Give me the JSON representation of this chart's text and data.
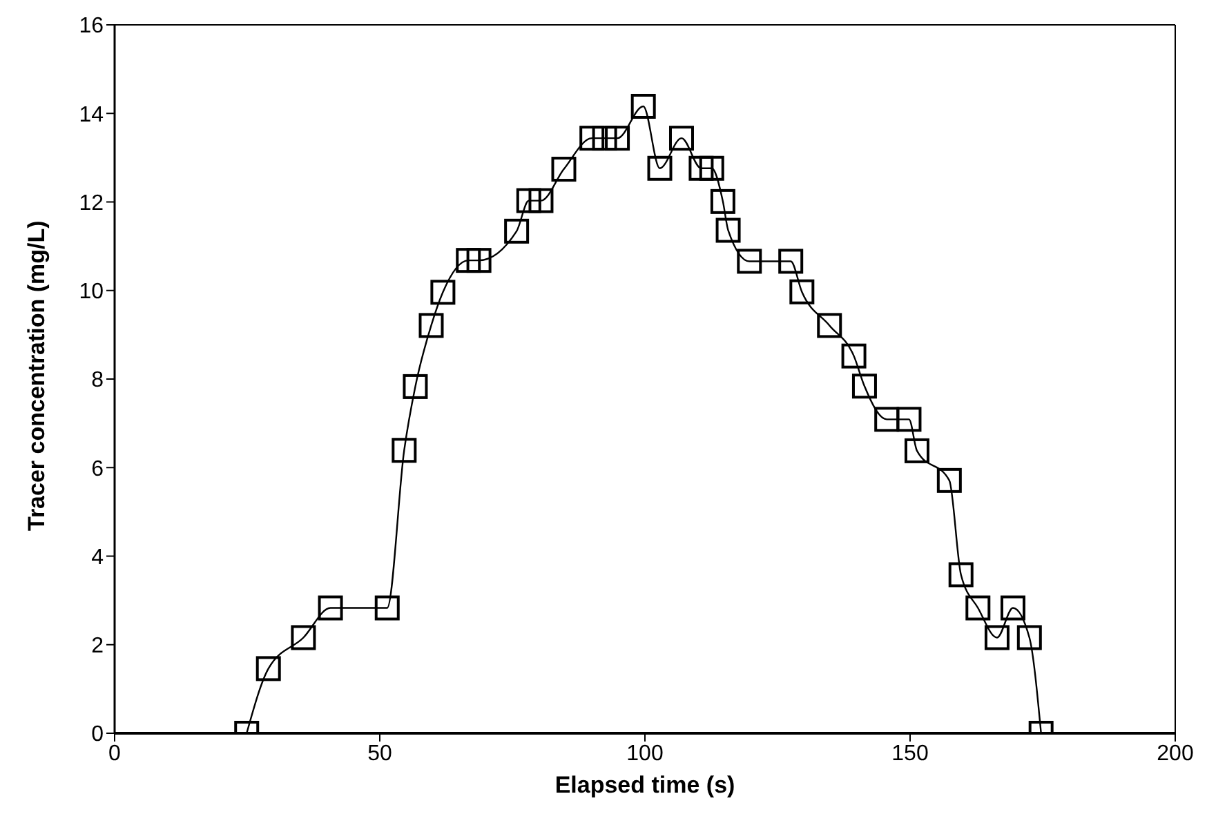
{
  "chart_data": {
    "type": "line",
    "xlabel": "Elapsed time (s)",
    "ylabel": "Tracer concentration (mg/L)",
    "x": [
      24.9,
      29.0,
      35.6,
      40.7,
      51.4,
      54.6,
      56.7,
      59.7,
      61.9,
      66.7,
      68.7,
      75.8,
      78.1,
      80.4,
      84.7,
      90.0,
      92.4,
      94.8,
      99.7,
      102.8,
      106.9,
      110.6,
      112.6,
      114.7,
      115.7,
      119.7,
      127.5,
      129.6,
      134.8,
      139.4,
      141.4,
      145.6,
      149.8,
      151.3,
      157.4,
      159.6,
      162.8,
      166.4,
      169.4,
      172.5,
      174.7
    ],
    "series": [
      {
        "color": "#000000",
        "values": [
          0,
          1.46,
          2.16,
          2.83,
          2.83,
          6.39,
          7.83,
          9.21,
          9.96,
          10.68,
          10.68,
          11.34,
          12.03,
          12.03,
          12.74,
          13.44,
          13.44,
          13.44,
          14.16,
          12.76,
          13.44,
          12.76,
          12.76,
          12.01,
          11.36,
          10.66,
          10.66,
          9.97,
          9.21,
          8.52,
          7.84,
          7.09,
          7.09,
          6.38,
          5.71,
          3.58,
          2.83,
          2.16,
          2.83,
          2.16,
          0
        ]
      }
    ],
    "xlim": [
      0,
      200
    ],
    "xticks": [
      0,
      50,
      100,
      150,
      200
    ],
    "ylim": [
      0,
      16
    ],
    "yticks": [
      0,
      2,
      4,
      6,
      8,
      10,
      12,
      14,
      16
    ],
    "marker": "square",
    "line_style": "solid",
    "grid": false,
    "legend": false
  }
}
